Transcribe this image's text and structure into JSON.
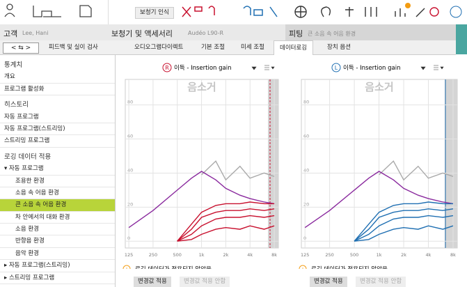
{
  "header": {
    "detect_button": "보청기 인식",
    "client_label": "고객",
    "client_name": "Lee, Hani",
    "device_label": "보청기 및 액세서리",
    "device_name": "Audéo L90-R",
    "fitting_label": "피팅",
    "fitting_program": "큰 소음 속 어음 환경"
  },
  "tabs": [
    "피드백 및 실이 검사",
    "오디오그램다이렉트",
    "기본 조절",
    "미세 조절",
    "데이터로깅",
    "장치 옵션"
  ],
  "sidebar": [
    {
      "title": "통계치",
      "items": [
        "개요",
        "프로그램 활성화"
      ]
    },
    {
      "title": "히스토리",
      "items": [
        "자동 프로그램",
        "자동 프로그램(스트리밍)",
        "스트리밍 프로그램"
      ]
    },
    {
      "title": "로깅 데이터 적용",
      "items": [
        "자동 프로그램",
        "조용한 환경",
        "소음 속 어음 환경",
        "큰 소음 속 어음 환경",
        "차 안에서의 대화 환경",
        "소음 환경",
        "반향음 환경",
        "음악 환경",
        "자동 프로그램(스트리밍)",
        "스트리밍 프로그램"
      ]
    }
  ],
  "chart_data": [
    {
      "type": "line",
      "side": "R",
      "dropdown": "이득 - Insertion gain",
      "title": "음소거",
      "log_x": true,
      "grid": true,
      "x": [
        125,
        250,
        500,
        750,
        1000,
        1500,
        2000,
        3000,
        4000,
        6000,
        8000
      ],
      "xlim": [
        113,
        9000
      ],
      "xticks": [
        125,
        250,
        500,
        {
          "value": 1000,
          "label": "1k"
        },
        {
          "value": 2000,
          "label": "2k"
        },
        {
          "value": 4000,
          "label": "4k"
        },
        {
          "value": 8000,
          "label": "8k"
        }
      ],
      "ylim": [
        -4,
        95
      ],
      "yticks": [
        0,
        20,
        40,
        60,
        80
      ],
      "series": [
        {
          "color": "#aaaaaa",
          "values": [
            null,
            null,
            null,
            null,
            39,
            47,
            36,
            44,
            37,
            40,
            38
          ]
        },
        {
          "color": "#8a2a9e",
          "values": [
            8,
            18,
            30,
            37,
            41,
            36,
            31,
            27,
            25,
            23,
            22
          ]
        },
        {
          "color": "#c8102e",
          "values": [
            null,
            null,
            0,
            10,
            17,
            21,
            22,
            22,
            23,
            22,
            22
          ]
        },
        {
          "color": "#c8102e",
          "values": [
            null,
            null,
            0,
            7,
            14,
            17,
            18,
            18,
            19,
            18,
            19
          ]
        },
        {
          "color": "#c8102e",
          "values": [
            null,
            null,
            0,
            4,
            9,
            13,
            14,
            14,
            15,
            14,
            15
          ]
        },
        {
          "color": "#c8102e",
          "values": [
            null,
            null,
            0,
            1,
            4,
            7,
            8,
            7,
            9,
            7,
            9
          ]
        }
      ],
      "notice": "로깅 데이터가 적용되지 않았음",
      "apply": "변경값 적용",
      "cancel": "변경값 적용 안함"
    },
    {
      "type": "line",
      "side": "L",
      "dropdown": "이득 - Insertion gain",
      "title": "음소거",
      "log_x": true,
      "grid": true,
      "x": [
        125,
        250,
        500,
        750,
        1000,
        1500,
        2000,
        3000,
        4000,
        6000,
        8000
      ],
      "xlim": [
        113,
        9000
      ],
      "xticks": [
        125,
        250,
        500,
        {
          "value": 1000,
          "label": "1k"
        },
        {
          "value": 2000,
          "label": "2k"
        },
        {
          "value": 4000,
          "label": "4k"
        },
        {
          "value": 8000,
          "label": "8k"
        }
      ],
      "ylim": [
        -4,
        95
      ],
      "yticks": [
        0,
        20,
        40,
        60,
        80
      ],
      "series": [
        {
          "color": "#aaaaaa",
          "values": [
            null,
            null,
            null,
            null,
            39,
            47,
            36,
            44,
            37,
            40,
            38
          ]
        },
        {
          "color": "#8a2a9e",
          "values": [
            8,
            18,
            30,
            37,
            41,
            36,
            31,
            27,
            25,
            23,
            22
          ]
        },
        {
          "color": "#1f6fb2",
          "values": [
            null,
            null,
            0,
            10,
            17,
            21,
            22,
            22,
            23,
            22,
            22
          ]
        },
        {
          "color": "#1f6fb2",
          "values": [
            null,
            null,
            0,
            7,
            14,
            17,
            18,
            18,
            19,
            18,
            19
          ]
        },
        {
          "color": "#1f6fb2",
          "values": [
            null,
            null,
            0,
            4,
            9,
            13,
            14,
            14,
            15,
            14,
            15
          ]
        },
        {
          "color": "#1f6fb2",
          "values": [
            null,
            null,
            0,
            1,
            4,
            7,
            8,
            7,
            9,
            7,
            9
          ]
        }
      ],
      "notice": "로깅 데이터가 적용되지 않았음",
      "apply": "변경값 적용",
      "cancel": "변경값 적용 안함"
    }
  ]
}
